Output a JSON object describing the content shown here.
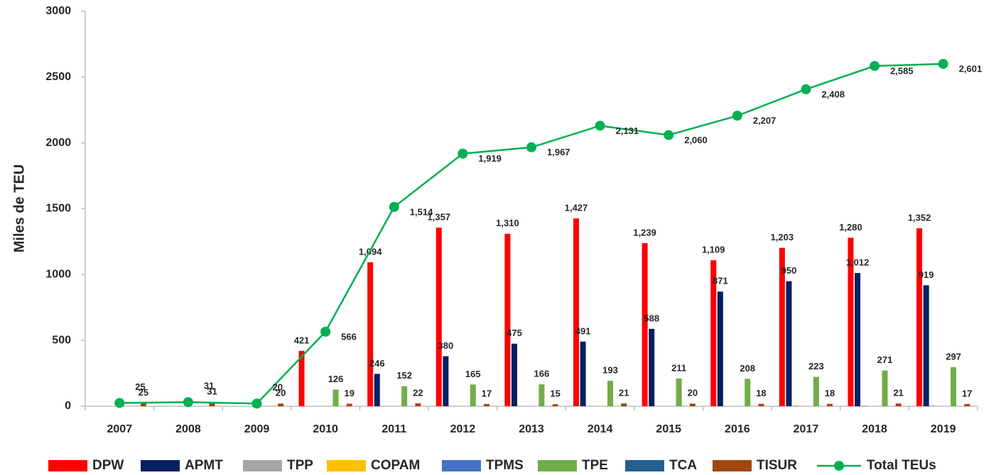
{
  "chart_data": {
    "type": "bar",
    "ylabel": "Miles de TEU",
    "categories": [
      "2007",
      "2008",
      "2009",
      "2010",
      "2011",
      "2012",
      "2013",
      "2014",
      "2015",
      "2016",
      "2017",
      "2018",
      "2019"
    ],
    "ylim": [
      0,
      3000
    ],
    "yticks": [
      0,
      500,
      1000,
      1500,
      2000,
      2500,
      3000
    ],
    "legend": "bottom",
    "series": [
      {
        "name": "DPW",
        "color": "#ff0000",
        "values": [
          null,
          null,
          null,
          421,
          1094,
          1357,
          1310,
          1427,
          1239,
          1109,
          1203,
          1280,
          1352
        ],
        "value_labels": [
          null,
          null,
          null,
          "421",
          "1,094",
          "1,357",
          "1,310",
          "1,427",
          "1,239",
          "1,109",
          "1,203",
          "1,280",
          "1,352"
        ]
      },
      {
        "name": "APMT",
        "color": "#002060",
        "values": [
          null,
          null,
          null,
          null,
          246,
          380,
          475,
          491,
          588,
          871,
          950,
          1012,
          919
        ],
        "value_labels": [
          null,
          null,
          null,
          null,
          "246",
          "380",
          "475",
          "491",
          "588",
          "871",
          "950",
          "1,012",
          "919"
        ]
      },
      {
        "name": "TPP",
        "color": "#a6a6a6",
        "values": [
          null,
          null,
          null,
          null,
          null,
          null,
          null,
          null,
          null,
          null,
          5,
          5,
          5
        ]
      },
      {
        "name": "COPAM",
        "color": "#ffc000",
        "values": [
          null,
          null,
          null,
          null,
          null,
          null,
          null,
          null,
          null,
          null,
          null,
          null,
          null
        ]
      },
      {
        "name": "TPMS",
        "color": "#4472c4",
        "values": [
          null,
          null,
          null,
          null,
          null,
          null,
          null,
          null,
          null,
          null,
          null,
          null,
          null
        ]
      },
      {
        "name": "TPE",
        "color": "#70ad47",
        "values": [
          null,
          null,
          null,
          126,
          152,
          165,
          166,
          193,
          211,
          208,
          223,
          271,
          297
        ]
      },
      {
        "name": "TCA",
        "color": "#255e91",
        "values": [
          null,
          null,
          null,
          null,
          null,
          null,
          null,
          null,
          null,
          null,
          null,
          null,
          null
        ]
      },
      {
        "name": "TISUR",
        "color": "#9e480e",
        "values": [
          25,
          31,
          20,
          19,
          22,
          17,
          15,
          21,
          20,
          18,
          18,
          21,
          17
        ]
      },
      {
        "name": "Total TEUs",
        "color": "#00b050",
        "type": "line",
        "values": [
          25,
          31,
          20,
          566,
          1514,
          1919,
          1967,
          2131,
          2060,
          2207,
          2408,
          2585,
          2601
        ],
        "value_labels": [
          "25",
          "31",
          "20",
          "566",
          "1,514",
          "1,919",
          "1,967",
          "2,131",
          "2,060",
          "2,207",
          "2,408",
          "2,585",
          "2,601"
        ]
      }
    ]
  }
}
